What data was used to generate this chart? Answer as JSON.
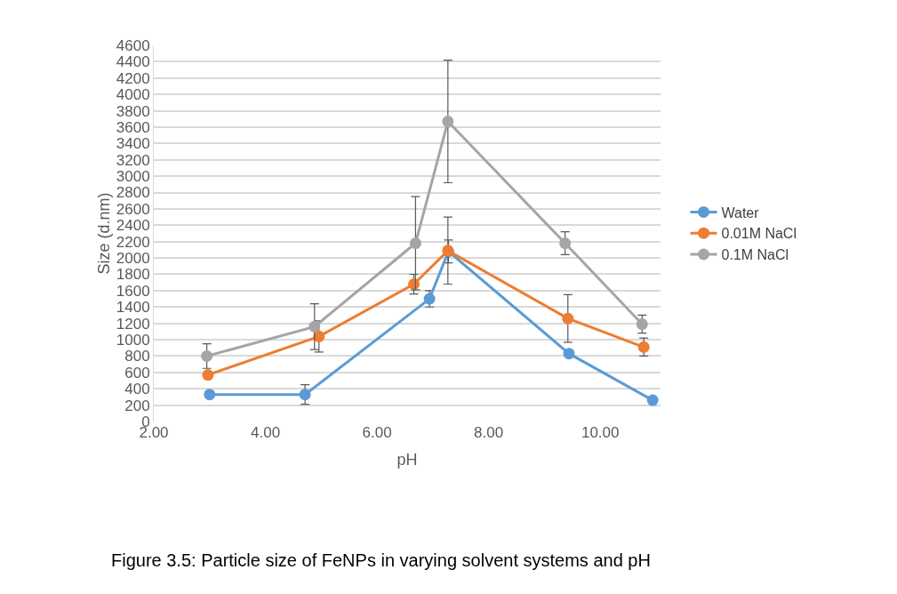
{
  "chart_data": {
    "type": "line",
    "xlabel": "pH",
    "ylabel": "Size (d.nm)",
    "annotations": [
      "Figure 3.5: Particle size of FeNPs in varying solvent systems and pH"
    ],
    "xlim": [
      2.0,
      11.08
    ],
    "xticks": [
      {
        "value": 2,
        "label": "2.00"
      },
      {
        "value": 4,
        "label": "4.00"
      },
      {
        "value": 6,
        "label": "6.00"
      },
      {
        "value": 8,
        "label": "8.00"
      },
      {
        "value": 10,
        "label": "10.00"
      }
    ],
    "ylim": [
      0,
      4600
    ],
    "yticks": [
      0,
      200,
      400,
      600,
      800,
      1000,
      1200,
      1400,
      1600,
      1800,
      2000,
      2200,
      2400,
      2600,
      2800,
      3000,
      3200,
      3400,
      3600,
      3800,
      4000,
      4200,
      4400,
      4600
    ],
    "grid": "y",
    "legend": "right",
    "marker": "circle",
    "line_style": "solid",
    "series": [
      {
        "name": "Water",
        "color": "#5b9bd5",
        "x": [
          3.0,
          4.71,
          6.94,
          7.28,
          9.44,
          10.94
        ],
        "values": [
          330,
          330,
          1500,
          2080,
          830,
          260
        ],
        "errors": [
          null,
          120,
          100,
          140,
          null,
          null
        ]
      },
      {
        "name": "0.01M NaCl",
        "color": "#ed7d31",
        "x": [
          2.97,
          4.96,
          6.66,
          7.27,
          9.42,
          10.78
        ],
        "values": [
          570,
          1040,
          1680,
          2090,
          1260,
          910
        ],
        "errors": [
          null,
          190,
          120,
          410,
          290,
          110
        ]
      },
      {
        "name": "0.1M NaCl",
        "color": "#a5a5a5",
        "x": [
          2.95,
          4.88,
          6.69,
          7.27,
          9.37,
          10.75
        ],
        "values": [
          800,
          1160,
          2180,
          3670,
          2180,
          1190
        ],
        "errors": [
          150,
          280,
          570,
          750,
          140,
          110
        ]
      }
    ]
  }
}
